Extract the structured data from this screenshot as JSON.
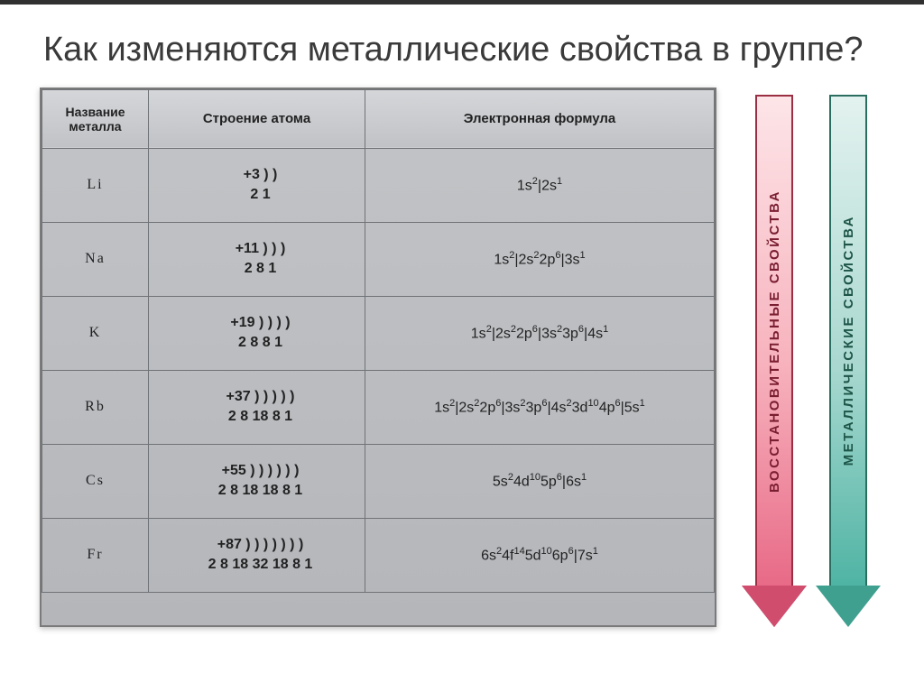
{
  "title": "Как изменяются металлические свойства в группе?",
  "table": {
    "headers": {
      "col1": "Название металла",
      "col2": "Строение атома",
      "col3": "Электронная формула"
    },
    "rows": [
      {
        "metal": "Li",
        "structure": "+3   ) )\n      2  1",
        "formula": "1s<sup>2</sup>|2s<sup>1</sup>"
      },
      {
        "metal": "Na",
        "structure": "+11  ) ) )\n      2 8 1",
        "formula": "1s<sup>2</sup>|2s<sup>2</sup>2p<sup>6</sup>|3s<sup>1</sup>"
      },
      {
        "metal": "K",
        "structure": "+19  ) ) ) )\n      2 8 8 1",
        "formula": "1s<sup>2</sup>|2s<sup>2</sup>2p<sup>6</sup>|3s<sup>2</sup>3p<sup>6</sup>|4s<sup>1</sup>"
      },
      {
        "metal": "Rb",
        "structure": "+37  ) ) ) ) )\n      2 8 18 8 1",
        "formula": "1s<sup>2</sup>|2s<sup>2</sup>2p<sup>6</sup>|3s<sup>2</sup>3p<sup>6</sup>|4s<sup>2</sup>3d<sup>10</sup>4p<sup>6</sup>|5s<sup>1</sup>"
      },
      {
        "metal": "Cs",
        "structure": "+55  ) ) ) ) ) )\n      2 8 18 18 8 1",
        "formula": "5s<sup>2</sup>4d<sup>10</sup>5p<sup>6</sup>|6s<sup>1</sup>"
      },
      {
        "metal": "Fr",
        "structure": "+87   ) ) ) ) ) ) )\n       2 8  18 32 18  8 1",
        "formula": "6s<sup>2</sup>4f<sup>14</sup>5d<sup>10</sup>6p<sup>6</sup>|7s<sup>1</sup>"
      }
    ]
  },
  "arrows": {
    "red_label": "ВОССТАНОВИТЕЛЬНЫЕ   СВОЙСТВА",
    "teal_label": "МЕТАЛЛИЧЕСКИЕ   СВОЙСТВА",
    "red_gradient": [
      "#fde5e8",
      "#e86a87"
    ],
    "teal_gradient": [
      "#e3f2ef",
      "#4fb4a4"
    ]
  },
  "colors": {
    "title": "#3a3a3a",
    "table_bg": "#c2c4c7",
    "border": "#6f7276"
  }
}
